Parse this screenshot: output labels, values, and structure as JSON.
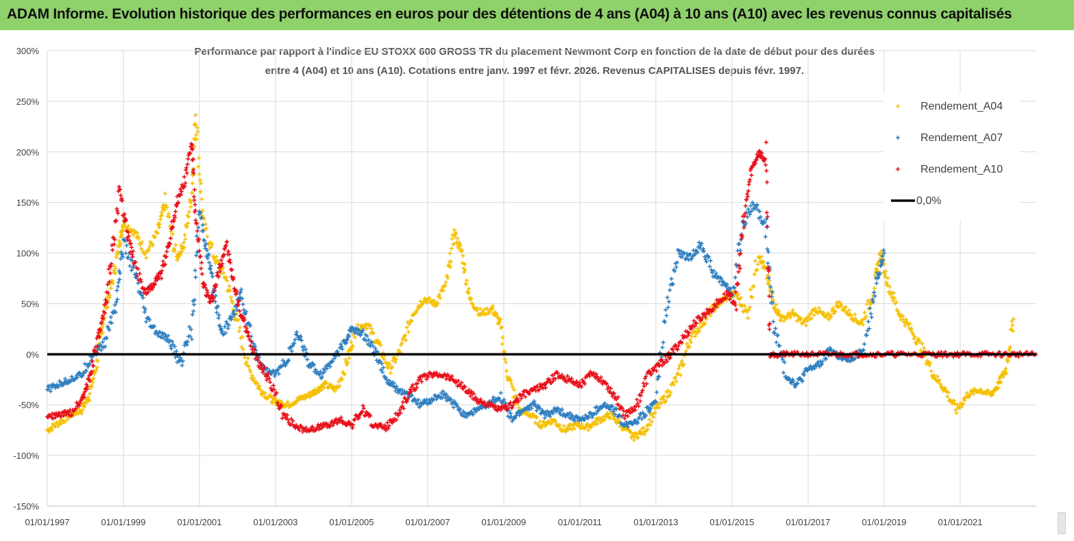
{
  "banner": {
    "title": "ADAM Informe. Evolution historique des performances en euros pour des détentions de 4 ans (A04) à 10 ans (A10) avec les revenus connus capitalisés",
    "color": "#8fd16b"
  },
  "chart_data": {
    "type": "scatter",
    "title_line1": "Performance par rapport à l'indice EU STOXX 600 GROSS TR  du placement Newmont Corp en fonction de la date de début pour des durées",
    "title_line2": "entre 4 (A04) et 10 ans (A10). Cotations entre janv. 1997 et févr. 2026. Revenus CAPITALISES depuis févr. 1997.",
    "xlabel": "",
    "ylabel": "",
    "xlim": [
      1997.0,
      2023.0
    ],
    "ylim": [
      -150,
      300
    ],
    "y_ticks": [
      300,
      250,
      200,
      150,
      100,
      50,
      0,
      -50,
      -100,
      -150
    ],
    "y_tick_labels": [
      "300%",
      "250%",
      "200%",
      "150%",
      "100%",
      "50%",
      "0%",
      "-50%",
      "-100%",
      "-150%"
    ],
    "x_ticks": [
      1997,
      1999,
      2001,
      2003,
      2005,
      2007,
      2009,
      2011,
      2013,
      2015,
      2017,
      2019,
      2021
    ],
    "x_tick_labels": [
      "01/01/1997",
      "01/01/1999",
      "01/01/2001",
      "01/01/2003",
      "01/01/2005",
      "01/01/2007",
      "01/01/2009",
      "01/01/2011",
      "01/01/2013",
      "01/01/2015",
      "01/01/2017",
      "01/01/2019",
      "01/01/2021"
    ],
    "legend_position": "top-right",
    "series": [
      {
        "name": "Rendement_A04",
        "color": "#f5c000",
        "marker": "+",
        "x": [
          1997.0,
          1997.3,
          1997.6,
          1997.9,
          1998.1,
          1998.3,
          1998.5,
          1998.7,
          1998.9,
          1999.0,
          1999.3,
          1999.6,
          1999.9,
          2000.1,
          2000.4,
          2000.6,
          2000.8,
          2000.9,
          2001.1,
          2001.4,
          2001.7,
          2002.0,
          2002.3,
          2002.6,
          2002.9,
          2003.1,
          2003.3,
          2003.6,
          2003.9,
          2004.1,
          2004.3,
          2004.6,
          2004.9,
          2005.1,
          2005.4,
          2005.7,
          2006.0,
          2006.3,
          2006.6,
          2006.9,
          2007.2,
          2007.5,
          2007.7,
          2007.9,
          2008.1,
          2008.4,
          2008.7,
          2008.9,
          2009.1,
          2009.4,
          2009.7,
          2010.0,
          2010.3,
          2010.6,
          2010.9,
          2011.2,
          2011.5,
          2011.8,
          2012.1,
          2012.4,
          2012.7,
          2013.0,
          2013.3,
          2013.6,
          2013.9,
          2014.2,
          2014.5,
          2014.8,
          2015.1,
          2015.4,
          2015.7,
          2015.9,
          2016.1,
          2016.3,
          2016.6,
          2016.9,
          2017.2,
          2017.5,
          2017.8,
          2018.1,
          2018.4,
          2018.7,
          2018.9,
          2019.1,
          2019.4,
          2019.7,
          2020.0,
          2020.3,
          2020.6,
          2020.9,
          2021.2,
          2021.5,
          2021.8,
          2022.0,
          2022.2,
          2022.4
        ],
        "values": [
          -75,
          -68,
          -60,
          -55,
          -40,
          -10,
          40,
          70,
          110,
          130,
          120,
          100,
          120,
          150,
          95,
          110,
          160,
          240,
          130,
          95,
          75,
          30,
          -15,
          -35,
          -45,
          -48,
          -50,
          -45,
          -40,
          -35,
          -30,
          -35,
          -5,
          25,
          30,
          10,
          -15,
          5,
          40,
          55,
          50,
          70,
          120,
          100,
          55,
          40,
          45,
          30,
          -20,
          -55,
          -60,
          -70,
          -65,
          -75,
          -70,
          -72,
          -65,
          -60,
          -70,
          -82,
          -75,
          -55,
          -40,
          -20,
          15,
          30,
          45,
          55,
          60,
          40,
          100,
          80,
          50,
          35,
          40,
          30,
          45,
          35,
          50,
          40,
          30,
          60,
          100,
          70,
          40,
          25,
          5,
          -20,
          -35,
          -55,
          -40,
          -35,
          -40,
          -30,
          -15,
          35
        ]
      },
      {
        "name": "Rendement_A07",
        "color": "#2f7fc1",
        "marker": "+",
        "x": [
          1997.0,
          1997.3,
          1997.6,
          1997.9,
          1998.2,
          1998.5,
          1998.8,
          1999.0,
          1999.3,
          1999.6,
          1999.9,
          2000.2,
          2000.5,
          2000.8,
          2001.0,
          2001.2,
          2001.4,
          2001.6,
          2001.9,
          2002.1,
          2002.4,
          2002.7,
          2003.0,
          2003.3,
          2003.6,
          2003.9,
          2004.2,
          2004.5,
          2004.8,
          2005.0,
          2005.3,
          2005.6,
          2005.9,
          2006.2,
          2006.5,
          2006.8,
          2007.1,
          2007.4,
          2007.7,
          2008.0,
          2008.3,
          2008.6,
          2008.9,
          2009.2,
          2009.5,
          2009.8,
          2010.1,
          2010.4,
          2010.7,
          2011.0,
          2011.3,
          2011.6,
          2011.9,
          2012.2,
          2012.5,
          2012.8,
          2013.0,
          2013.3,
          2013.6,
          2013.9,
          2014.2,
          2014.5,
          2014.8,
          2015.0,
          2015.3,
          2015.6,
          2015.9,
          2016.1,
          2016.4,
          2016.7,
          2017.0,
          2017.3,
          2017.6,
          2017.9,
          2018.2,
          2018.5,
          2018.8,
          2019.0
        ],
        "values": [
          -35,
          -30,
          -25,
          -20,
          0,
          10,
          50,
          110,
          80,
          35,
          20,
          15,
          -10,
          30,
          140,
          100,
          60,
          20,
          40,
          60,
          10,
          -15,
          -20,
          -5,
          20,
          -10,
          -20,
          -5,
          10,
          25,
          20,
          5,
          -25,
          -35,
          -40,
          -50,
          -45,
          -40,
          -50,
          -60,
          -55,
          -50,
          -40,
          -65,
          -55,
          -50,
          -60,
          -55,
          -60,
          -65,
          -60,
          -50,
          -55,
          -70,
          -65,
          -55,
          -45,
          50,
          100,
          95,
          110,
          80,
          70,
          60,
          130,
          150,
          120,
          30,
          -20,
          -30,
          -15,
          -10,
          5,
          -5,
          -5,
          10,
          75,
          100
        ]
      },
      {
        "name": "Rendement_A10",
        "color": "#e8101a",
        "marker": "+",
        "x": [
          1997.0,
          1997.3,
          1997.6,
          1997.9,
          1998.1,
          1998.3,
          1998.5,
          1998.7,
          1998.9,
          1999.1,
          1999.3,
          1999.6,
          1999.8,
          2000.0,
          2000.2,
          2000.4,
          2000.6,
          2000.8,
          2000.9,
          2001.1,
          2001.3,
          2001.5,
          2001.7,
          2001.9,
          2002.1,
          2002.3,
          2002.6,
          2002.9,
          2003.2,
          2003.5,
          2003.8,
          2004.1,
          2004.4,
          2004.7,
          2005.0,
          2005.3,
          2005.6,
          2005.9,
          2006.2,
          2006.5,
          2006.8,
          2007.1,
          2007.4,
          2007.7,
          2008.0,
          2008.3,
          2008.6,
          2008.9,
          2009.2,
          2009.5,
          2009.8,
          2010.1,
          2010.4,
          2010.7,
          2011.0,
          2011.3,
          2011.6,
          2011.9,
          2012.2,
          2012.5,
          2012.8,
          2013.1,
          2013.4,
          2013.7,
          2014.0,
          2014.3,
          2014.6,
          2014.9,
          2015.1,
          2015.3,
          2015.5,
          2015.7,
          2015.9,
          2016.0,
          2016.2,
          2016.5,
          2017.0,
          2017.5,
          2018.0,
          2018.5,
          2019.0,
          2019.5,
          2020.0,
          2020.5,
          2021.0,
          2021.5,
          2022.0,
          2022.5,
          2022.99
        ],
        "values": [
          -62,
          -60,
          -58,
          -45,
          -25,
          10,
          40,
          100,
          160,
          120,
          90,
          60,
          70,
          80,
          110,
          150,
          170,
          210,
          130,
          70,
          50,
          80,
          110,
          70,
          40,
          15,
          -10,
          -30,
          -60,
          -70,
          -75,
          -72,
          -70,
          -65,
          -70,
          -55,
          -70,
          -72,
          -60,
          -40,
          -25,
          -20,
          -20,
          -25,
          -35,
          -45,
          -50,
          -55,
          -50,
          -40,
          -35,
          -30,
          -20,
          -25,
          -30,
          -20,
          -25,
          -40,
          -60,
          -50,
          -20,
          -10,
          0,
          15,
          30,
          40,
          50,
          60,
          50,
          130,
          180,
          200,
          190,
          0,
          0,
          0,
          0,
          0,
          0,
          0,
          0,
          0,
          0,
          0,
          0,
          0,
          0,
          0,
          0
        ]
      }
    ],
    "reference_line": {
      "name": "0,0%",
      "value": 0,
      "color": "#000000"
    }
  }
}
